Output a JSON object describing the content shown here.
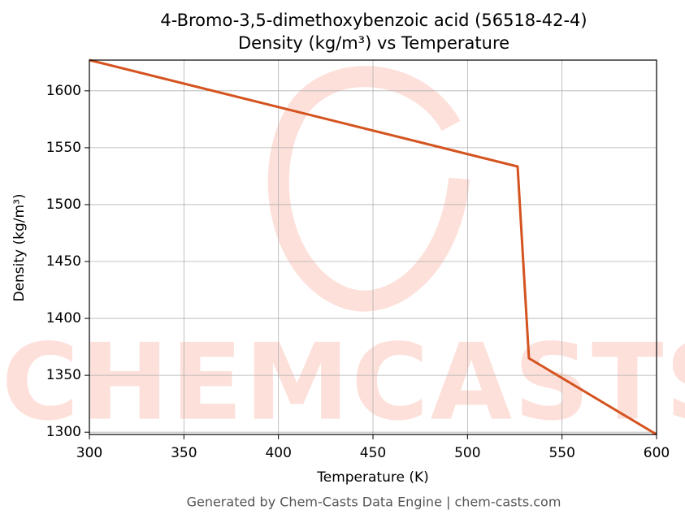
{
  "chart_data": {
    "type": "line",
    "title": "4-Bromo-3,5-dimethoxybenzoic acid (56518-42-4)",
    "subtitle": "Density (kg/m³) vs Temperature",
    "x_label": "Temperature (K)",
    "y_label": "Density (kg/m³)",
    "footer": "Generated by Chem-Casts Data Engine | chem-casts.com",
    "watermark": "CHEMCASTS",
    "series": [
      {
        "name": "Density",
        "color": "#d4531f",
        "x": [
          300,
          526.5,
          532.5,
          600
        ],
        "values": [
          1627,
          1533.5,
          1365,
          1298
        ]
      }
    ],
    "xlim": [
      300,
      600
    ],
    "xticks": [
      300,
      350,
      400,
      450,
      500,
      550,
      600
    ],
    "ylim": [
      1298,
      1627
    ],
    "yticks": [
      1300,
      1350,
      1400,
      1450,
      1500,
      1550,
      1600
    ],
    "grid": true
  }
}
